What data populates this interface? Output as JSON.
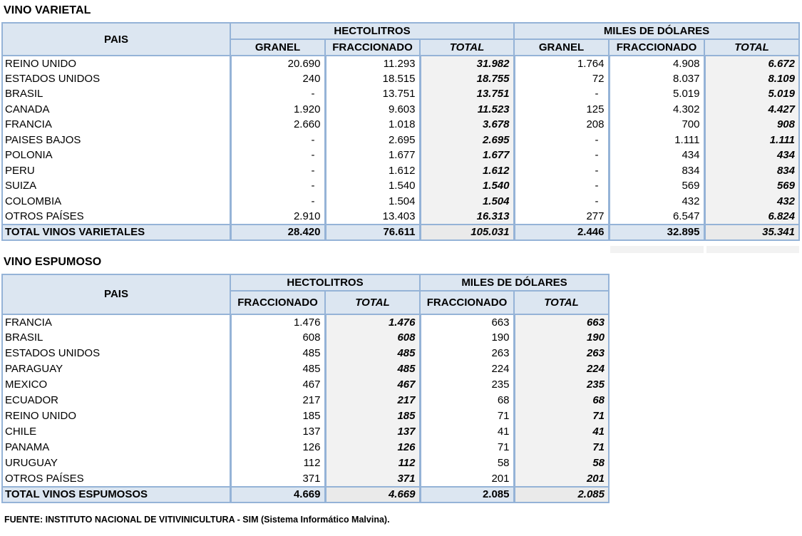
{
  "colors": {
    "table_border": "#95B3D7",
    "header_background": "#DCE6F1",
    "total_column_background": "#F2F2F2"
  },
  "varietal": {
    "title": "VINO VARIETAL",
    "col_pais": "PAIS",
    "group_hectolitros": "HECTOLITROS",
    "group_dolares": "MILES DE DÓLARES",
    "sub_headers": [
      "GRANEL",
      "FRACCIONADO",
      "TOTAL",
      "GRANEL",
      "FRACCIONADO",
      "TOTAL"
    ],
    "rows": [
      {
        "pais": "REINO UNIDO",
        "values": [
          "20.690",
          "11.293",
          "31.982",
          "1.764",
          "4.908",
          "6.672"
        ]
      },
      {
        "pais": "ESTADOS UNIDOS",
        "values": [
          "240",
          "18.515",
          "18.755",
          "72",
          "8.037",
          "8.109"
        ]
      },
      {
        "pais": "BRASIL",
        "values": [
          "-",
          "13.751",
          "13.751",
          "-",
          "5.019",
          "5.019"
        ]
      },
      {
        "pais": "CANADA",
        "values": [
          "1.920",
          "9.603",
          "11.523",
          "125",
          "4.302",
          "4.427"
        ]
      },
      {
        "pais": "FRANCIA",
        "values": [
          "2.660",
          "1.018",
          "3.678",
          "208",
          "700",
          "908"
        ]
      },
      {
        "pais": "PAISES BAJOS",
        "values": [
          "-",
          "2.695",
          "2.695",
          "-",
          "1.111",
          "1.111"
        ]
      },
      {
        "pais": "POLONIA",
        "values": [
          "-",
          "1.677",
          "1.677",
          "-",
          "434",
          "434"
        ]
      },
      {
        "pais": "PERU",
        "values": [
          "-",
          "1.612",
          "1.612",
          "-",
          "834",
          "834"
        ]
      },
      {
        "pais": "SUIZA",
        "values": [
          "-",
          "1.540",
          "1.540",
          "-",
          "569",
          "569"
        ]
      },
      {
        "pais": "COLOMBIA",
        "values": [
          "-",
          "1.504",
          "1.504",
          "-",
          "432",
          "432"
        ]
      },
      {
        "pais": "OTROS PAÍSES",
        "values": [
          "2.910",
          "13.403",
          "16.313",
          "277",
          "6.547",
          "6.824"
        ]
      }
    ],
    "total": {
      "label": "TOTAL VINOS VARIETALES",
      "values": [
        "28.420",
        "76.611",
        "105.031",
        "2.446",
        "32.895",
        "35.341"
      ]
    }
  },
  "espumoso": {
    "title": "VINO ESPUMOSO",
    "col_pais": "PAIS",
    "group_hectolitros": "HECTOLITROS",
    "group_dolares": "MILES DE DÓLARES",
    "sub_headers": [
      "FRACCIONADO",
      "TOTAL",
      "FRACCIONADO",
      "TOTAL"
    ],
    "rows": [
      {
        "pais": "FRANCIA",
        "values": [
          "1.476",
          "1.476",
          "663",
          "663"
        ]
      },
      {
        "pais": "BRASIL",
        "values": [
          "608",
          "608",
          "190",
          "190"
        ]
      },
      {
        "pais": "ESTADOS UNIDOS",
        "values": [
          "485",
          "485",
          "263",
          "263"
        ]
      },
      {
        "pais": "PARAGUAY",
        "values": [
          "485",
          "485",
          "224",
          "224"
        ]
      },
      {
        "pais": "MEXICO",
        "values": [
          "467",
          "467",
          "235",
          "235"
        ]
      },
      {
        "pais": "ECUADOR",
        "values": [
          "217",
          "217",
          "68",
          "68"
        ]
      },
      {
        "pais": "REINO UNIDO",
        "values": [
          "185",
          "185",
          "71",
          "71"
        ]
      },
      {
        "pais": "CHILE",
        "values": [
          "137",
          "137",
          "41",
          "41"
        ]
      },
      {
        "pais": "PANAMA",
        "values": [
          "126",
          "126",
          "71",
          "71"
        ]
      },
      {
        "pais": "URUGUAY",
        "values": [
          "112",
          "112",
          "58",
          "58"
        ]
      },
      {
        "pais": "OTROS PAÍSES",
        "values": [
          "371",
          "371",
          "201",
          "201"
        ]
      }
    ],
    "total": {
      "label": "TOTAL VINOS ESPUMOSOS",
      "values": [
        "4.669",
        "4.669",
        "2.085",
        "2.085"
      ]
    }
  },
  "footer": {
    "source_note": "FUENTE: INSTITUTO NACIONAL DE VITIVINICULTURA - SIM (Sistema Informático Malvina)."
  }
}
